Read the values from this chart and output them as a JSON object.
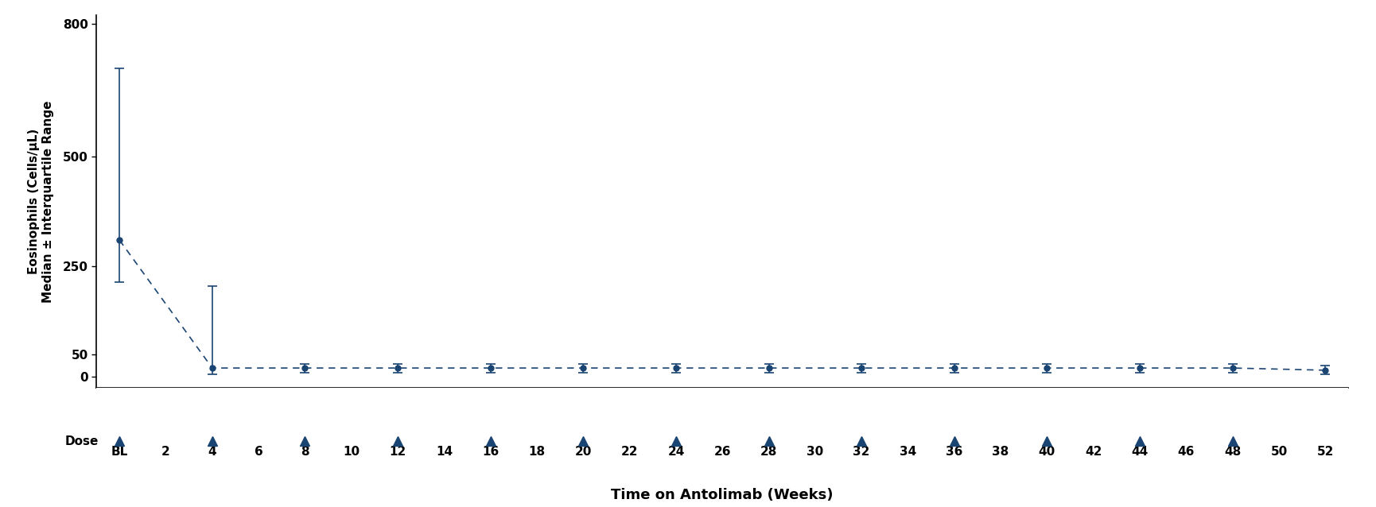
{
  "ylabel_line1": "Eosinophils (Cells/μL)",
  "ylabel_line2": "Median ± Interquartile Range",
  "xlabel": "Time on Antolimab (Weeks)",
  "dose_label": "Dose",
  "color": "#1a4472",
  "x_labels": [
    "BL",
    "2",
    "4",
    "6",
    "8",
    "10",
    "12",
    "14",
    "16",
    "18",
    "20",
    "22",
    "24",
    "26",
    "28",
    "30",
    "32",
    "34",
    "36",
    "38",
    "40",
    "42",
    "44",
    "46",
    "48",
    "50",
    "52"
  ],
  "x_tick_positions": [
    0,
    1,
    2,
    3,
    4,
    5,
    6,
    7,
    8,
    9,
    10,
    11,
    12,
    13,
    14,
    15,
    16,
    17,
    18,
    19,
    20,
    21,
    22,
    23,
    24,
    25,
    26
  ],
  "medians": [
    310,
    20,
    20,
    20,
    20,
    20,
    20,
    20,
    20,
    20,
    20,
    20,
    20,
    15
  ],
  "upper_errors": [
    390,
    185,
    10,
    10,
    10,
    10,
    10,
    10,
    10,
    10,
    10,
    10,
    10,
    10
  ],
  "lower_errors": [
    95,
    15,
    10,
    10,
    10,
    10,
    10,
    10,
    10,
    10,
    10,
    10,
    10,
    10
  ],
  "data_x_positions": [
    0,
    2,
    4,
    6,
    8,
    10,
    12,
    14,
    16,
    18,
    20,
    22,
    24,
    26
  ],
  "dose_x_positions": [
    0,
    2,
    4,
    6,
    8,
    10,
    12,
    14,
    16,
    18,
    20,
    22,
    24
  ],
  "xlim": [
    -0.5,
    26.5
  ],
  "ylim": [
    -25,
    820
  ],
  "yticks": [
    0,
    50,
    250,
    500,
    800
  ],
  "background_color": "#ffffff"
}
